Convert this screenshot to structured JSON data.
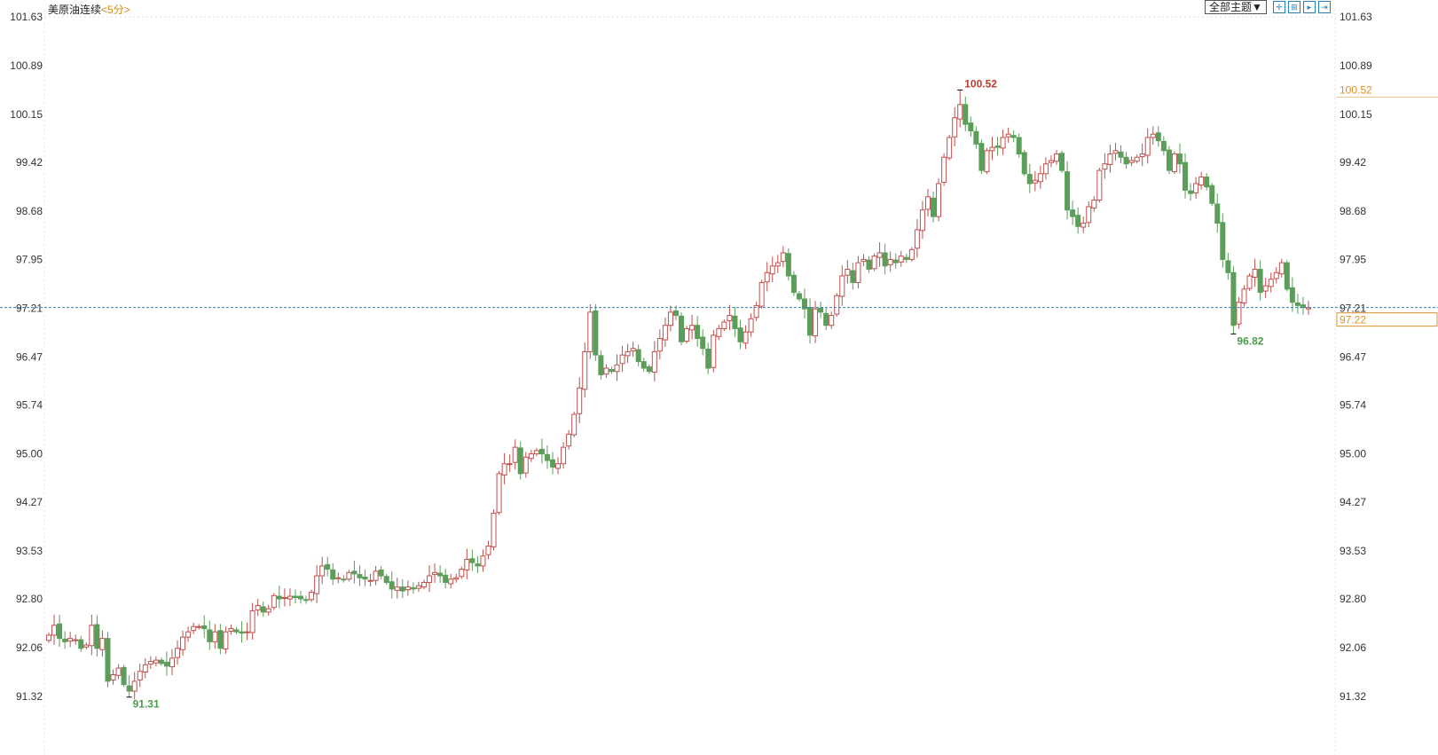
{
  "header": {
    "title": "美原油连续",
    "period": "<5分>",
    "theme_button": "全部主题▼",
    "toolbar_icons": [
      "crosshair-icon",
      "zoom-in-icon",
      "zoom-out-icon",
      "jump-to-end-icon"
    ]
  },
  "colors": {
    "up": "#c0504d",
    "down": "#5a9e5a",
    "last_price": "#e0902a",
    "dashed_line": "#3f7fa8"
  },
  "chart_data": {
    "type": "candlestick",
    "title": "美原油连续",
    "interval": "5分",
    "ylim": [
      91.32,
      101.63
    ],
    "y_ticks": [
      "101.63",
      "100.89",
      "100.15",
      "99.42",
      "98.68",
      "97.95",
      "97.21",
      "96.47",
      "95.74",
      "95.00",
      "94.27",
      "93.53",
      "92.80",
      "92.06",
      "91.32"
    ],
    "last_price": "97.22",
    "high_marker": {
      "label": "100.52",
      "value": 100.52
    },
    "low_markers": [
      {
        "label": "91.31",
        "value": 91.31
      },
      {
        "label": "96.82",
        "value": 96.82
      }
    ],
    "right_high_label": "100.52",
    "close": [
      92.25,
      92.4,
      92.2,
      92.15,
      92.2,
      92.18,
      92.05,
      92.1,
      92.4,
      92.05,
      92.2,
      91.55,
      91.65,
      91.75,
      91.5,
      91.4,
      91.55,
      91.7,
      91.8,
      91.85,
      91.87,
      91.82,
      91.78,
      91.9,
      92.05,
      92.22,
      92.3,
      92.38,
      92.38,
      92.35,
      92.15,
      92.3,
      92.05,
      92.3,
      92.35,
      92.3,
      92.28,
      92.3,
      92.62,
      92.7,
      92.6,
      92.65,
      92.85,
      92.8,
      92.82,
      92.84,
      92.82,
      92.8,
      92.78,
      92.9,
      93.15,
      93.3,
      93.25,
      93.1,
      93.12,
      93.1,
      93.2,
      93.18,
      93.12,
      93.1,
      93.08,
      93.22,
      93.15,
      93.05,
      92.95,
      92.98,
      92.92,
      92.98,
      92.95,
      93.0,
      93.05,
      93.15,
      93.2,
      93.15,
      93.05,
      93.1,
      93.12,
      93.25,
      93.4,
      93.35,
      93.3,
      93.45,
      93.6,
      94.1,
      94.7,
      94.85,
      94.85,
      95.1,
      94.7,
      94.95,
      95.0,
      95.05,
      95.0,
      94.9,
      94.8,
      94.85,
      95.1,
      95.3,
      95.6,
      96.0,
      96.55,
      97.15,
      96.5,
      96.2,
      96.3,
      96.25,
      96.35,
      96.5,
      96.55,
      96.6,
      96.4,
      96.3,
      96.25,
      96.55,
      96.75,
      96.95,
      97.15,
      97.1,
      96.7,
      96.9,
      96.95,
      96.75,
      96.6,
      96.3,
      96.8,
      96.9,
      97.0,
      97.1,
      96.9,
      96.7,
      96.85,
      97.05,
      97.25,
      97.6,
      97.75,
      97.85,
      97.9,
      98.05,
      97.7,
      97.45,
      97.35,
      97.2,
      96.8,
      97.2,
      97.15,
      96.95,
      97.1,
      97.4,
      97.7,
      97.8,
      97.6,
      97.9,
      97.95,
      97.8,
      98.0,
      98.05,
      97.85,
      97.95,
      97.9,
      98.0,
      97.95,
      98.1,
      98.4,
      98.7,
      98.9,
      98.6,
      99.1,
      99.5,
      99.8,
      100.1,
      100.3,
      100.0,
      99.9,
      99.7,
      99.3,
      99.6,
      99.65,
      99.65,
      99.8,
      99.85,
      99.8,
      99.55,
      99.25,
      99.1,
      99.15,
      99.25,
      99.4,
      99.45,
      99.55,
      99.3,
      98.7,
      98.6,
      98.45,
      98.5,
      98.75,
      98.85,
      99.3,
      99.4,
      99.55,
      99.6,
      99.5,
      99.4,
      99.45,
      99.5,
      99.55,
      99.8,
      99.85,
      99.75,
      99.6,
      99.3,
      99.55,
      99.4,
      99.0,
      98.95,
      99.1,
      99.2,
      99.05,
      98.8,
      98.5,
      97.95,
      97.75,
      96.95,
      97.3,
      97.5,
      97.7,
      97.8,
      97.45,
      97.55,
      97.65,
      97.75,
      97.9,
      97.5,
      97.3,
      97.25,
      97.22,
      97.22
    ]
  }
}
